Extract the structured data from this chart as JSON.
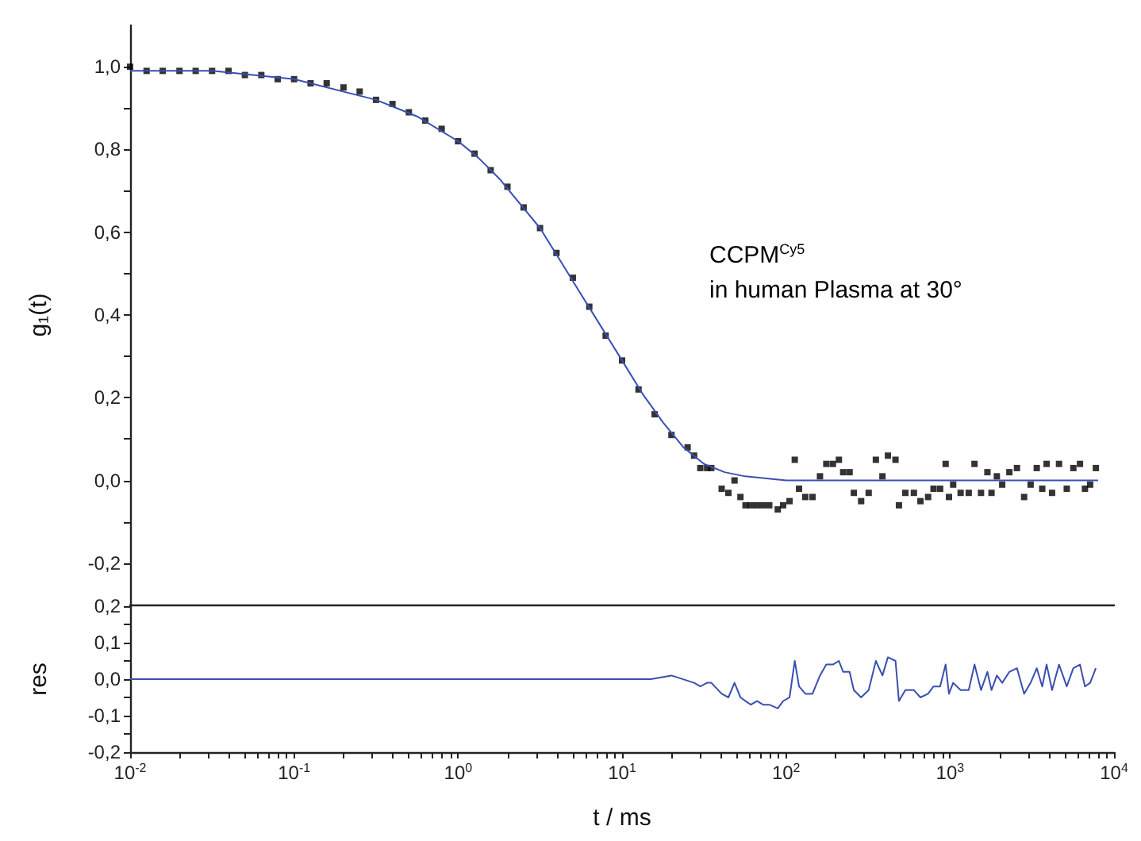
{
  "chart_data": [
    {
      "type": "scatter",
      "ylabel": "g₁(t)",
      "annotations": [
        "CCPM$^{Cy5}$",
        "in human Plasma at 30°"
      ],
      "log": "x",
      "xlim": [
        0.01,
        10000
      ],
      "ylim": [
        -0.3,
        1.1
      ],
      "tick_labels": "y",
      "yticks": [
        {
          "value": -0.2,
          "label": "-0,2"
        },
        {
          "value": -0.1,
          "label": null
        },
        {
          "value": 0,
          "label": "0,0"
        },
        {
          "value": 0.1,
          "label": null
        },
        {
          "value": 0.2,
          "label": "0,2"
        },
        {
          "value": 0.3,
          "label": null
        },
        {
          "value": 0.4,
          "label": "0,4"
        },
        {
          "value": 0.5,
          "label": null
        },
        {
          "value": 0.6,
          "label": "0,6"
        },
        {
          "value": 0.7,
          "label": null
        },
        {
          "value": 0.8,
          "label": "0,8"
        },
        {
          "value": 0.9,
          "label": null
        },
        {
          "value": 1.0,
          "label": "1,0"
        }
      ],
      "series": [
        {
          "color": "#000000",
          "marker": "square",
          "x": [
            0.01,
            0.0126,
            0.0158,
            0.02,
            0.0251,
            0.0316,
            0.0398,
            0.0501,
            0.0631,
            0.0794,
            0.1,
            0.126,
            0.158,
            0.2,
            0.251,
            0.316,
            0.398,
            0.501,
            0.631,
            0.794,
            1,
            1.26,
            1.58,
            2,
            2.51,
            3.16,
            3.98,
            5.01,
            6.31,
            7.94,
            10,
            12.6,
            15.8,
            20,
            25.1,
            27.5,
            30,
            33,
            35,
            40.5,
            44.5,
            48.5,
            52.7,
            56.6,
            61,
            66.5,
            72.5,
            79,
            89,
            96,
            105,
            113,
            120,
            131,
            145,
            161,
            176,
            193,
            210,
            223,
            244,
            259,
            287,
            319,
            353,
            387,
            418,
            465,
            488,
            534,
            602,
            660,
            735,
            793,
            870,
            940,
            985,
            1045,
            1160,
            1300,
            1410,
            1545,
            1690,
            1790,
            1930,
            2080,
            2300,
            2560,
            2830,
            3100,
            3380,
            3650,
            3880,
            4190,
            4620,
            5150,
            5650,
            6200,
            6650,
            7150,
            7750
          ],
          "values": [
            1.0,
            0.99,
            0.99,
            0.99,
            0.99,
            0.99,
            0.99,
            0.98,
            0.98,
            0.97,
            0.97,
            0.96,
            0.96,
            0.95,
            0.94,
            0.92,
            0.91,
            0.89,
            0.87,
            0.85,
            0.82,
            0.79,
            0.75,
            0.71,
            0.66,
            0.61,
            0.55,
            0.49,
            0.42,
            0.35,
            0.29,
            0.22,
            0.16,
            0.11,
            0.08,
            0.06,
            0.03,
            0.03,
            0.03,
            -0.02,
            -0.03,
            0.0,
            -0.04,
            -0.06,
            -0.06,
            -0.06,
            -0.06,
            -0.06,
            -0.07,
            -0.06,
            -0.05,
            0.05,
            -0.02,
            -0.04,
            -0.04,
            0.01,
            0.04,
            0.04,
            0.05,
            0.02,
            0.02,
            -0.03,
            -0.05,
            -0.03,
            0.05,
            0.01,
            0.06,
            0.05,
            -0.06,
            -0.03,
            -0.03,
            -0.05,
            -0.04,
            -0.02,
            -0.02,
            0.04,
            -0.04,
            -0.01,
            -0.03,
            -0.03,
            0.04,
            -0.03,
            0.02,
            -0.03,
            0.01,
            -0.01,
            0.02,
            0.03,
            -0.04,
            -0.01,
            0.03,
            -0.02,
            0.04,
            -0.03,
            0.04,
            -0.02,
            0.03,
            0.04,
            -0.02,
            -0.01,
            0.03
          ]
        },
        {
          "type": "line",
          "color": "#3a4fb0",
          "marker": "none",
          "x": [
            0.01,
            0.0316,
            0.1,
            0.316,
            0.562,
            1,
            1.33,
            1.78,
            2.37,
            3.16,
            4.22,
            5.62,
            7.5,
            10,
            13.3,
            17.8,
            23.7,
            31.6,
            42.2,
            56.2,
            100,
            1000,
            8000
          ],
          "values": [
            0.99,
            0.99,
            0.97,
            0.92,
            0.88,
            0.82,
            0.78,
            0.73,
            0.67,
            0.61,
            0.53,
            0.45,
            0.37,
            0.29,
            0.21,
            0.14,
            0.08,
            0.04,
            0.02,
            0.01,
            0,
            0,
            0
          ]
        }
      ]
    },
    {
      "type": "line",
      "ylabel": "res",
      "xlabel": "t / ms",
      "log": "x",
      "xlim": [
        0.01,
        10000
      ],
      "ylim": [
        -0.2,
        0.2
      ],
      "color": "#3a4fb0",
      "marker": "none",
      "yticks": [
        {
          "value": -0.2,
          "label": "-0,2"
        },
        {
          "value": -0.15,
          "label": null
        },
        {
          "value": -0.1,
          "label": "-0,1"
        },
        {
          "value": -0.05,
          "label": null
        },
        {
          "value": 0,
          "label": "0,0"
        },
        {
          "value": 0.05,
          "label": null
        },
        {
          "value": 0.1,
          "label": "0,1"
        },
        {
          "value": 0.15,
          "label": null
        },
        {
          "value": 0.2,
          "label": "0,2"
        }
      ],
      "xticks": [
        {
          "value": 0.01,
          "label": "10$^{-2}$"
        },
        {
          "value": 0.02,
          "label": null
        },
        {
          "value": 0.03,
          "label": null
        },
        {
          "value": 0.04,
          "label": null
        },
        {
          "value": 0.05,
          "label": null
        },
        {
          "value": 0.06,
          "label": null
        },
        {
          "value": 0.07,
          "label": null
        },
        {
          "value": 0.08,
          "label": null
        },
        {
          "value": 0.09,
          "label": null
        },
        {
          "value": 0.1,
          "label": "10$^{-1}$"
        },
        {
          "value": 0.2,
          "label": null
        },
        {
          "value": 0.3,
          "label": null
        },
        {
          "value": 0.4,
          "label": null
        },
        {
          "value": 0.5,
          "label": null
        },
        {
          "value": 0.6,
          "label": null
        },
        {
          "value": 0.7,
          "label": null
        },
        {
          "value": 0.8,
          "label": null
        },
        {
          "value": 0.9,
          "label": null
        },
        {
          "value": 1,
          "label": "10$^{0}$"
        },
        {
          "value": 2,
          "label": null
        },
        {
          "value": 3,
          "label": null
        },
        {
          "value": 4,
          "label": null
        },
        {
          "value": 5,
          "label": null
        },
        {
          "value": 6,
          "label": null
        },
        {
          "value": 7,
          "label": null
        },
        {
          "value": 8,
          "label": null
        },
        {
          "value": 9,
          "label": null
        },
        {
          "value": 10,
          "label": "10$^{1}$"
        },
        {
          "value": 20,
          "label": null
        },
        {
          "value": 30,
          "label": null
        },
        {
          "value": 40,
          "label": null
        },
        {
          "value": 50,
          "label": null
        },
        {
          "value": 60,
          "label": null
        },
        {
          "value": 70,
          "label": null
        },
        {
          "value": 80,
          "label": null
        },
        {
          "value": 90,
          "label": null
        },
        {
          "value": 100,
          "label": "10$^{2}$"
        },
        {
          "value": 200,
          "label": null
        },
        {
          "value": 300,
          "label": null
        },
        {
          "value": 400,
          "label": null
        },
        {
          "value": 500,
          "label": null
        },
        {
          "value": 600,
          "label": null
        },
        {
          "value": 700,
          "label": null
        },
        {
          "value": 800,
          "label": null
        },
        {
          "value": 900,
          "label": null
        },
        {
          "value": 1000,
          "label": "10$^{3}$"
        },
        {
          "value": 2000,
          "label": null
        },
        {
          "value": 3000,
          "label": null
        },
        {
          "value": 4000,
          "label": null
        },
        {
          "value": 5000,
          "label": null
        },
        {
          "value": 6000,
          "label": null
        },
        {
          "value": 7000,
          "label": null
        },
        {
          "value": 8000,
          "label": null
        },
        {
          "value": 9000,
          "label": null
        },
        {
          "value": 10000,
          "label": "10$^{4}$"
        }
      ],
      "x": [
        0.01,
        0.1,
        1,
        10,
        15,
        20,
        27.5,
        30,
        33,
        35,
        40.5,
        44.5,
        48.5,
        52.7,
        56.6,
        61,
        66.5,
        72.5,
        79,
        89,
        96,
        105,
        113,
        120,
        131,
        145,
        161,
        176,
        193,
        210,
        223,
        244,
        259,
        287,
        319,
        353,
        387,
        418,
        465,
        488,
        534,
        602,
        660,
        735,
        793,
        870,
        940,
        985,
        1045,
        1160,
        1300,
        1410,
        1545,
        1690,
        1790,
        1930,
        2080,
        2300,
        2560,
        2830,
        3100,
        3380,
        3650,
        3880,
        4190,
        4620,
        5150,
        5650,
        6200,
        6650,
        7150,
        7750
      ],
      "values": [
        0,
        0,
        0,
        0,
        0,
        0.01,
        -0.01,
        -0.02,
        -0.01,
        -0.01,
        -0.04,
        -0.05,
        -0.01,
        -0.05,
        -0.06,
        -0.07,
        -0.06,
        -0.07,
        -0.07,
        -0.08,
        -0.06,
        -0.05,
        0.05,
        -0.02,
        -0.04,
        -0.04,
        0.01,
        0.04,
        0.04,
        0.05,
        0.02,
        0.02,
        -0.03,
        -0.05,
        -0.03,
        0.05,
        0.01,
        0.06,
        0.05,
        -0.06,
        -0.03,
        -0.03,
        -0.05,
        -0.04,
        -0.02,
        -0.02,
        0.04,
        -0.04,
        -0.01,
        -0.03,
        -0.03,
        0.04,
        -0.03,
        0.02,
        -0.03,
        0.01,
        -0.01,
        0.02,
        0.03,
        -0.04,
        -0.01,
        0.03,
        -0.02,
        0.04,
        -0.03,
        0.04,
        -0.02,
        0.03,
        0.04,
        -0.02,
        -0.01,
        0.03
      ]
    }
  ]
}
